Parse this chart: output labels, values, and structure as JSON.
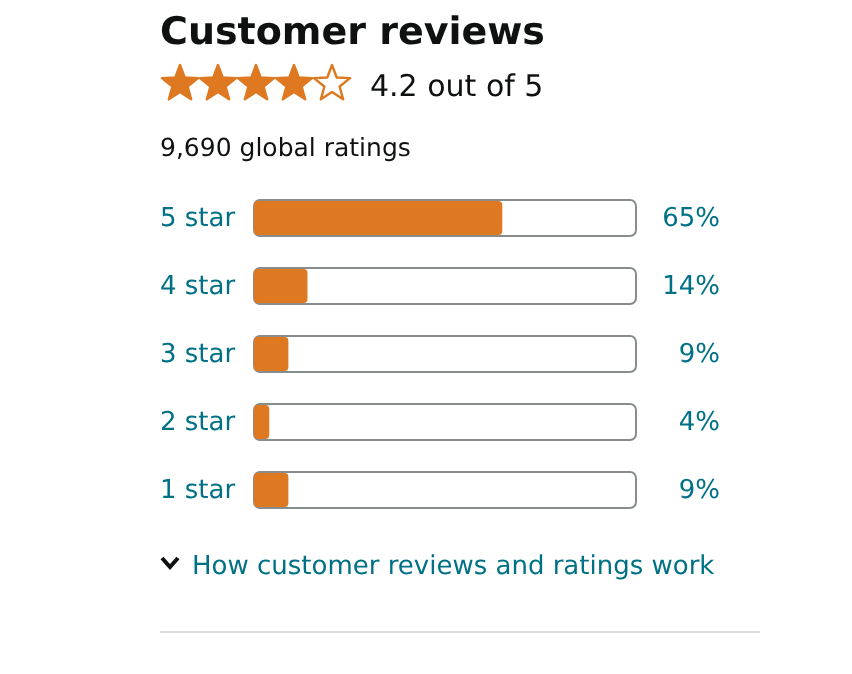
{
  "chart_data": {
    "type": "bar",
    "orientation": "horizontal",
    "title": "Customer reviews",
    "subtitle": "4.2 out of 5",
    "annotations": [
      "9,690 global ratings",
      "How customer reviews and ratings work"
    ],
    "categories": [
      "5 star",
      "4 star",
      "3 star",
      "2 star",
      "1 star"
    ],
    "values": [
      65,
      14,
      9,
      4,
      9
    ],
    "color": "#de7921",
    "xlim": [
      0,
      100
    ],
    "data_labels": true,
    "value_labels": [
      "65%",
      "14%",
      "9%",
      "4%",
      "9%"
    ]
  }
}
